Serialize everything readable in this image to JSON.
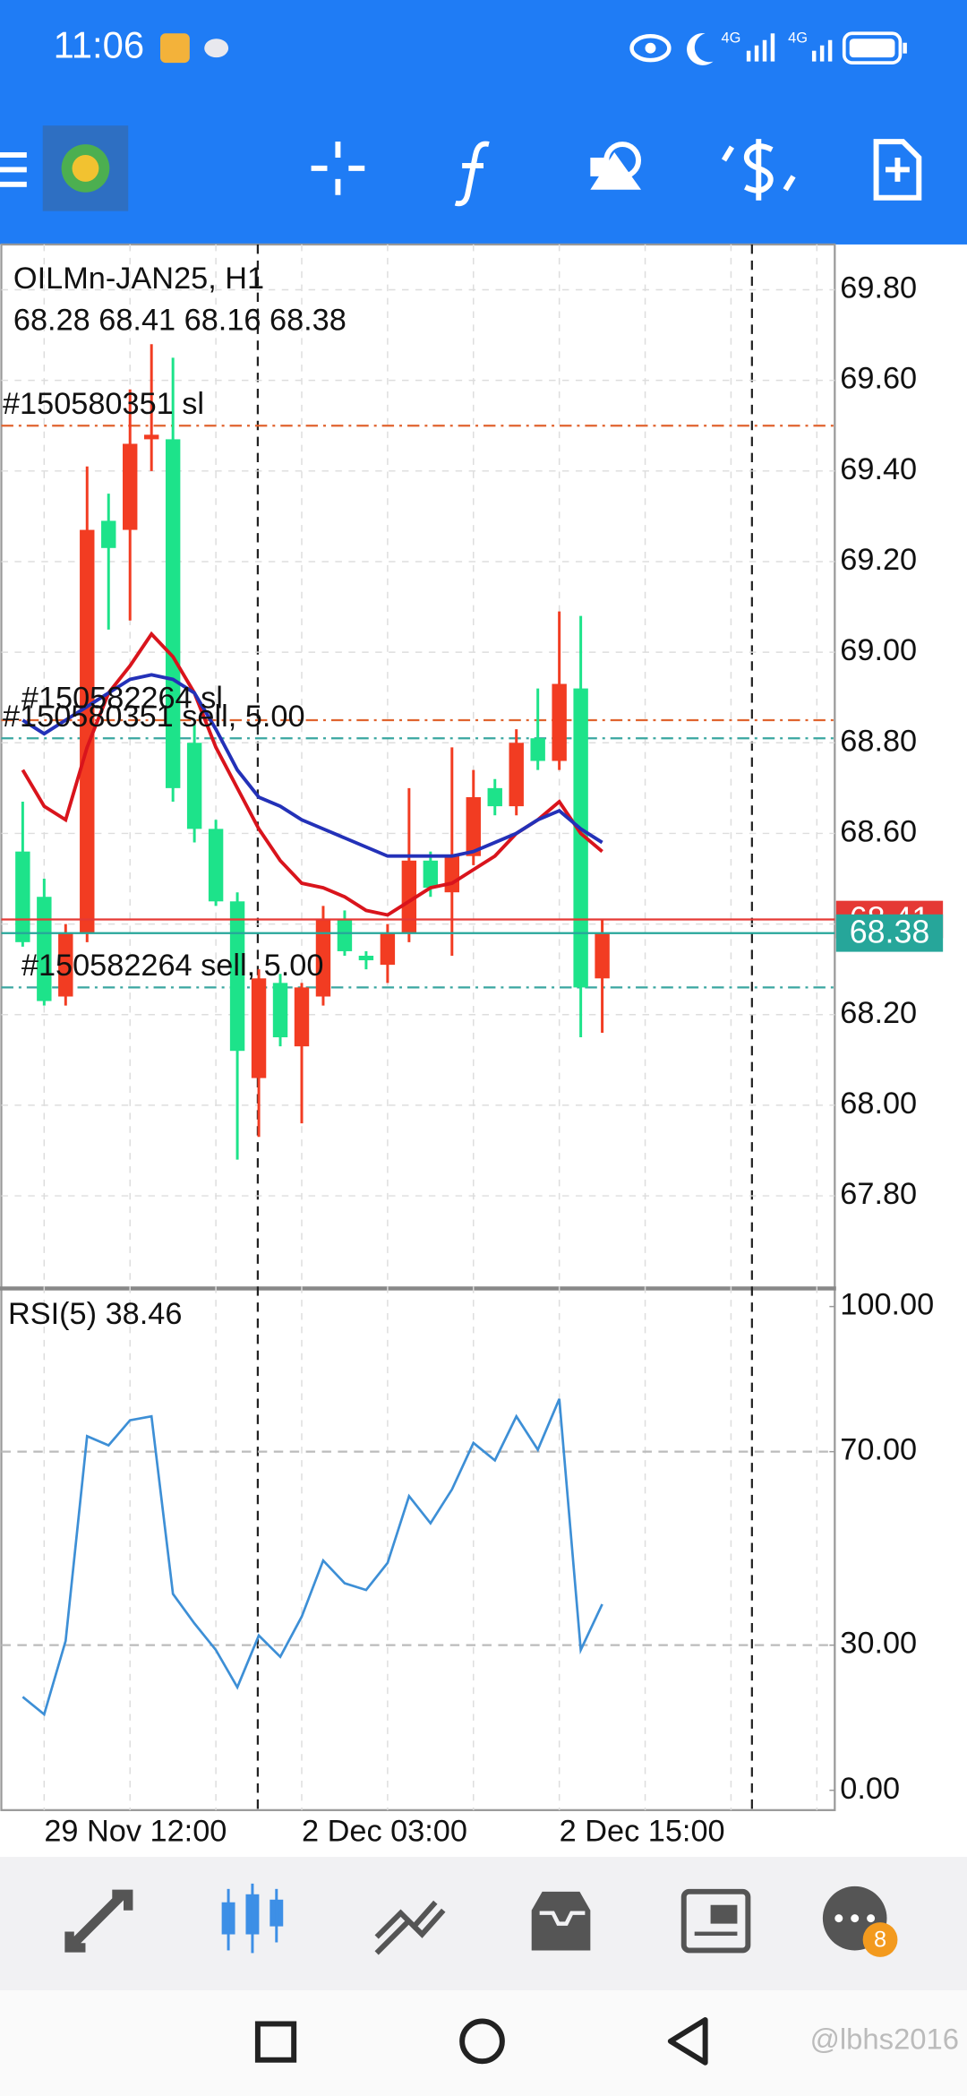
{
  "status_bar": {
    "time": "11:06",
    "signal_labels": [
      "4G",
      "4G"
    ]
  },
  "chart_data": [
    {
      "type": "candlestick",
      "title": "OILMn-JAN25, H1",
      "subtitle": "68.28 68.41 68.16 68.38",
      "categories": [
        null,
        "29 Nov 12:00",
        null,
        null,
        null,
        null,
        null,
        null,
        null,
        null,
        null,
        null,
        null,
        "2 Dec 03:00",
        null,
        null,
        null,
        null,
        null,
        null,
        null,
        null,
        null,
        null,
        null,
        "2 Dec 15:00",
        null,
        null
      ],
      "open": [
        68.56,
        68.46,
        68.24,
        68.38,
        69.29,
        69.27,
        69.47,
        69.47,
        68.8,
        68.61,
        68.45,
        68.06,
        68.27,
        68.13,
        68.24,
        68.41,
        68.33,
        68.31,
        68.38,
        68.54,
        68.47,
        68.55,
        68.7,
        68.66,
        68.81,
        68.76,
        68.92,
        68.28
      ],
      "high": [
        68.67,
        68.5,
        68.4,
        69.41,
        69.35,
        69.58,
        69.68,
        69.65,
        68.84,
        68.63,
        68.47,
        68.3,
        68.29,
        68.27,
        68.44,
        68.43,
        68.34,
        68.4,
        68.7,
        68.56,
        68.79,
        68.74,
        68.72,
        68.83,
        68.92,
        69.09,
        69.08,
        68.41
      ],
      "low": [
        68.35,
        68.22,
        68.22,
        68.36,
        69.05,
        69.07,
        69.4,
        68.67,
        68.58,
        68.44,
        67.88,
        67.93,
        68.13,
        67.96,
        68.22,
        68.33,
        68.3,
        68.27,
        68.36,
        68.46,
        68.33,
        68.53,
        68.64,
        68.64,
        68.74,
        68.74,
        68.15,
        68.16
      ],
      "close": [
        68.36,
        68.23,
        68.38,
        69.27,
        69.23,
        69.46,
        69.48,
        68.7,
        68.61,
        68.45,
        68.12,
        68.28,
        68.15,
        68.26,
        68.41,
        68.34,
        68.32,
        68.38,
        68.54,
        68.48,
        68.55,
        68.68,
        68.66,
        68.8,
        68.76,
        68.93,
        68.26,
        68.38
      ],
      "up_color": "#f23c22",
      "down_color": "#1de38a",
      "series": [
        {
          "color": "#d9141c",
          "values": [
            68.74,
            68.66,
            68.63,
            68.79,
            68.91,
            68.97,
            69.04,
            68.99,
            68.91,
            68.79,
            68.7,
            68.61,
            68.54,
            68.49,
            68.48,
            68.46,
            68.43,
            68.42,
            68.45,
            68.48,
            68.49,
            68.52,
            68.55,
            68.6,
            68.63,
            68.67,
            68.6,
            68.56
          ]
        },
        {
          "color": "#2331b8",
          "values": [
            68.85,
            68.82,
            68.85,
            68.88,
            68.91,
            68.94,
            68.95,
            68.94,
            68.91,
            68.83,
            68.74,
            68.68,
            68.66,
            68.63,
            68.61,
            68.59,
            68.57,
            68.55,
            68.55,
            68.55,
            68.55,
            68.56,
            68.58,
            68.6,
            68.63,
            68.65,
            68.61,
            68.58
          ]
        }
      ],
      "order_lines": [
        {
          "label": "#150580351 sl",
          "value": 69.5,
          "color": "#e0632e"
        },
        {
          "label": "#150582264 sl",
          "value": 68.85,
          "color": "#e0632e"
        },
        {
          "label": "#150580351 sell, 5.00",
          "value": 68.81,
          "color": "#3aa6a0"
        },
        {
          "label": "#150582264 sell, 5.00",
          "value": 68.26,
          "color": "#3aa6a0"
        }
      ],
      "price_lines": [
        {
          "value": 68.41,
          "color": "#e53935"
        },
        {
          "value": 68.38,
          "color": "#26a69a"
        }
      ],
      "ylim": [
        67.6,
        69.9
      ],
      "yticks": [
        {
          "value": 69.8,
          "label": "69.80"
        },
        {
          "value": 69.6,
          "label": "69.60"
        },
        {
          "value": 69.4,
          "label": "69.40"
        },
        {
          "value": 69.2,
          "label": "69.20"
        },
        {
          "value": 69.0,
          "label": "69.00"
        },
        {
          "value": 68.8,
          "label": "68.80"
        },
        {
          "value": 68.6,
          "label": "68.60"
        },
        {
          "value": 68.4,
          "label": "68.40"
        },
        {
          "value": 68.2,
          "label": "68.20"
        },
        {
          "value": 68.0,
          "label": "68.00"
        },
        {
          "value": 67.8,
          "label": "67.80"
        }
      ],
      "grid": true
    },
    {
      "type": "line",
      "title": "RSI(5) 38.46",
      "series": [
        {
          "color": "#3d8fd6",
          "values": [
            19.3,
            15.7,
            30.9,
            73.2,
            71.3,
            76.5,
            77.3,
            40.6,
            34.5,
            29.0,
            21.3,
            32.0,
            27.6,
            35.9,
            47.5,
            42.8,
            41.4,
            47.0,
            60.8,
            55.2,
            62.2,
            71.8,
            68.2,
            77.3,
            70.4,
            80.9,
            29.0,
            38.46
          ]
        }
      ],
      "ylim": [
        -4.1,
        103.6
      ],
      "yticks": [
        {
          "value": 100,
          "label": "100.00"
        },
        {
          "value": 70,
          "label": "70.00"
        },
        {
          "value": 30,
          "label": "30.00"
        },
        {
          "value": 0,
          "label": "0.00"
        }
      ],
      "levels": [
        70,
        30
      ]
    }
  ],
  "bottom_nav": {
    "chat_badge": 8
  },
  "watermark": "@lbhs2016"
}
